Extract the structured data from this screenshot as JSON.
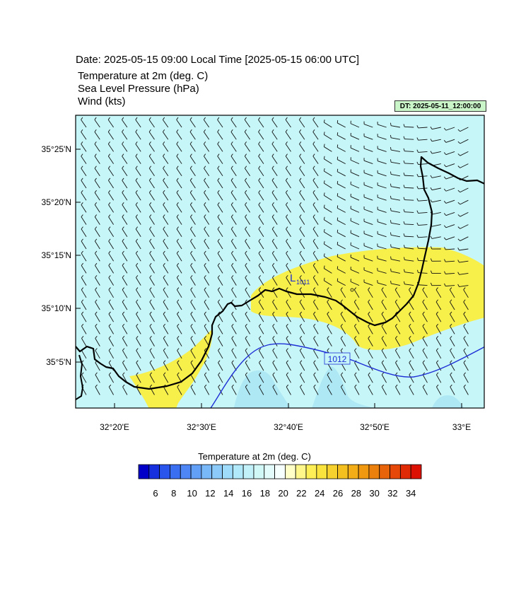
{
  "header": {
    "title": "Date: 2025-05-15  09:00 Local Time [2025-05-15  06:00 UTC]",
    "fields": [
      "Temperature at 2m   (deg. C)",
      "Sea Level Pressure   (hPa)",
      "Wind   (kts)"
    ],
    "dt_label": "DT: 2025-05-11_12:00:00"
  },
  "map": {
    "lat_ticks": [
      "35°25'N",
      "35°20'N",
      "35°15'N",
      "35°10'N",
      "35°5'N"
    ],
    "lon_ticks": [
      "32°20'E",
      "32°30'E",
      "32°40'E",
      "32°50'E",
      "33°E"
    ],
    "low_marker": {
      "symbol": "L",
      "value": "1011"
    },
    "isobar_label": "1012",
    "colors": {
      "sea_cool": "#c6f6f8",
      "warm": "#f7ef4a",
      "cooler_patch": "#aee8f4",
      "isobar": "#1f2fd6",
      "coast": "#000000"
    }
  },
  "colorbar": {
    "title": "Temperature at 2m  (deg. C)",
    "labels": [
      "6",
      "8",
      "10",
      "12",
      "14",
      "16",
      "18",
      "20",
      "22",
      "24",
      "26",
      "28",
      "30",
      "32",
      "34"
    ],
    "colors": [
      "#0000c8",
      "#1630e0",
      "#2a55ec",
      "#3b6ff2",
      "#4e86f5",
      "#62a0f7",
      "#78b8f8",
      "#8ccaf9",
      "#9fdbfa",
      "#b1e8fa",
      "#c2f1f9",
      "#d2f7f7",
      "#e4fbfb",
      "#f6fefe",
      "#ffffc8",
      "#fff78a",
      "#fdef55",
      "#f9e33c",
      "#f7d22e",
      "#f4c020",
      "#f2ad17",
      "#ef9810",
      "#ec800c",
      "#e8640a",
      "#e54808",
      "#e02a06",
      "#dc1104"
    ]
  }
}
